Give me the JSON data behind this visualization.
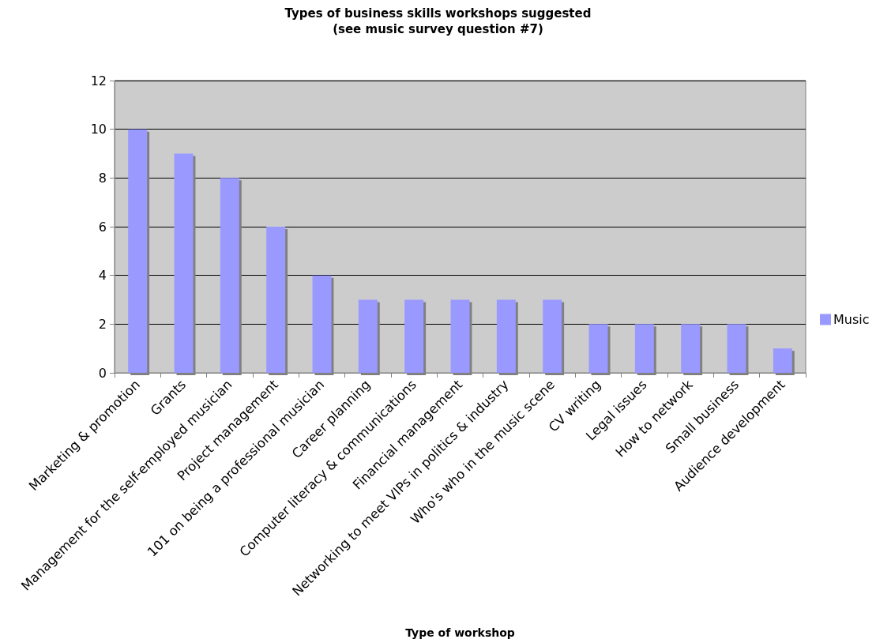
{
  "chart_data": {
    "type": "bar",
    "title": "Types of business skills workshops suggested\n(see music survey question #7)",
    "xlabel": "Type of workshop",
    "categories": [
      "Marketing & promotion",
      "Grants",
      "Management for the self-employed musician",
      "Project management",
      "101 on being a professional musician",
      "Career planning",
      "Computer literacy & communications",
      "Financial management",
      "Networking to meet VIPs in politics & industry",
      "Who's who in the music scene",
      "CV writing",
      "Legal issues",
      "How to network",
      "Small business",
      "Audience development"
    ],
    "series": [
      {
        "name": "Music",
        "color": "#9999ff",
        "values": [
          10,
          9,
          8,
          6,
          4,
          3,
          3,
          3,
          3,
          3,
          2,
          2,
          2,
          2,
          1
        ]
      }
    ],
    "ylim": [
      0,
      12
    ],
    "yticks": [
      0,
      2,
      4,
      6,
      8,
      10,
      12
    ],
    "grid": "y",
    "legend": "right"
  }
}
